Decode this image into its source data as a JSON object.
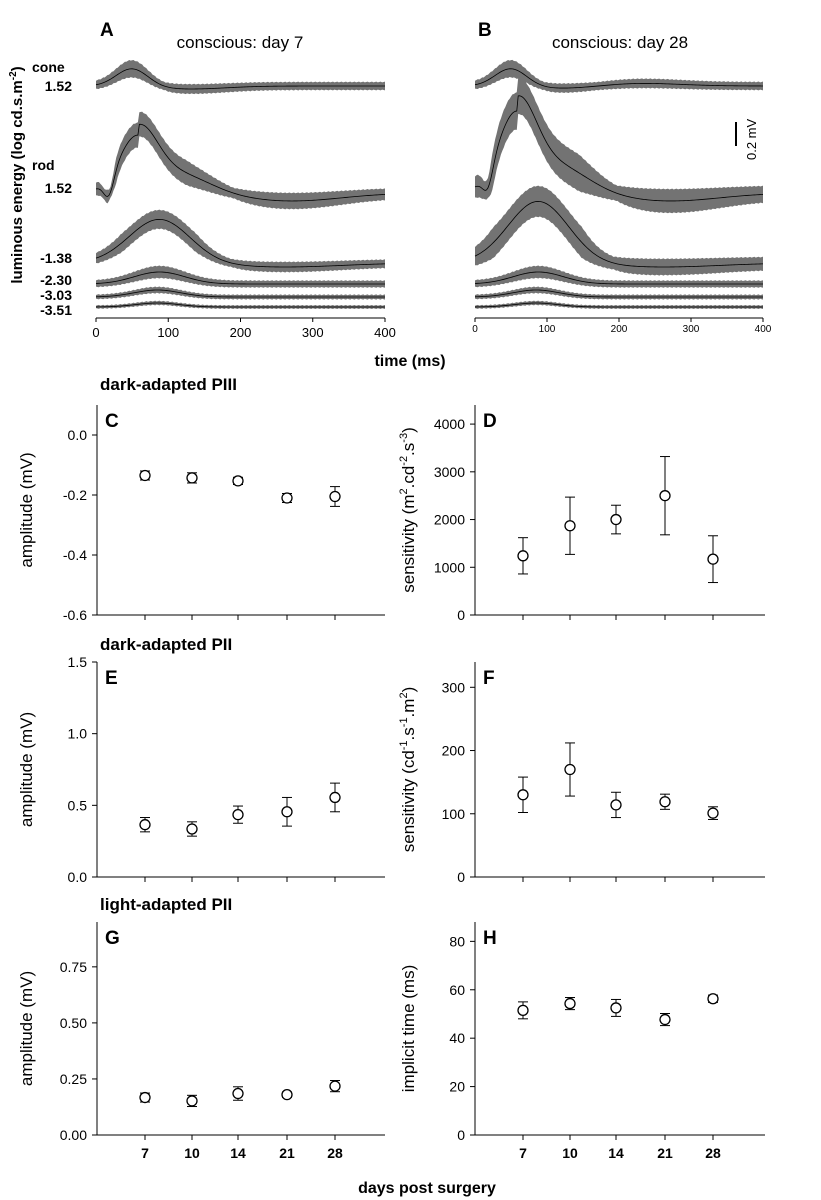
{
  "figure": {
    "global_xlabel": "days post surgery",
    "time_xlabel": "time (ms)",
    "traces_ylabel_main": "luminous energy (log cd.s.m",
    "traces_ylabel_sup": "-2",
    "traces_ylabel_end": ")"
  },
  "traces": {
    "panels": [
      {
        "letter": "A",
        "title": "conscious: day 7",
        "xticks": [
          0,
          100,
          200,
          300,
          400
        ]
      },
      {
        "letter": "B",
        "title": "conscious: day 28",
        "xticks": [
          0,
          100,
          200,
          300,
          400
        ]
      }
    ],
    "cone_label": "cone",
    "rod_label": "rod",
    "level_labels": [
      "1.52",
      "1.52",
      "-1.38",
      "-2.30",
      "-3.03",
      "-3.51"
    ],
    "scale_bar_label": "0.2 mV"
  },
  "sections": [
    "dark-adapted PIII",
    "dark-adapted PII",
    "light-adapted PII"
  ],
  "chart_data": [
    {
      "type": "scatter",
      "panel": "C",
      "section": "dark-adapted PIII",
      "ylabel": "amplitude (mV)",
      "ylim": [
        -0.6,
        0.1
      ],
      "yticks": [
        0.0,
        -0.2,
        -0.4,
        -0.6
      ],
      "ytick_labels": [
        "0.0",
        "-0.2",
        "-0.4",
        "-0.6"
      ],
      "x": [
        7,
        10,
        14,
        21,
        28
      ],
      "values": [
        -0.135,
        -0.143,
        -0.153,
        -0.21,
        -0.205
      ],
      "errors": [
        0.015,
        0.017,
        0.012,
        0.015,
        0.033
      ]
    },
    {
      "type": "scatter",
      "panel": "D",
      "section": "dark-adapted PIII",
      "ylabel_parts": [
        "sensitivity (m",
        "2",
        ".cd",
        "-2",
        ".s",
        "-3",
        ")"
      ],
      "ylim": [
        0,
        4400
      ],
      "yticks": [
        0,
        1000,
        2000,
        3000,
        4000
      ],
      "ytick_labels": [
        "0",
        "1000",
        "2000",
        "3000",
        "4000"
      ],
      "x": [
        7,
        10,
        14,
        21,
        28
      ],
      "values": [
        1240,
        1870,
        2000,
        2500,
        1170
      ],
      "errors": [
        380,
        600,
        300,
        820,
        490
      ]
    },
    {
      "type": "scatter",
      "panel": "E",
      "section": "dark-adapted PII",
      "ylabel": "amplitude (mV)",
      "ylim": [
        0,
        1.5
      ],
      "yticks": [
        0.0,
        0.5,
        1.0,
        1.5
      ],
      "ytick_labels": [
        "0.0",
        "0.5",
        "1.0",
        "1.5"
      ],
      "x": [
        7,
        10,
        14,
        21,
        28
      ],
      "values": [
        0.365,
        0.335,
        0.435,
        0.455,
        0.555
      ],
      "errors": [
        0.05,
        0.05,
        0.06,
        0.1,
        0.1
      ]
    },
    {
      "type": "scatter",
      "panel": "F",
      "section": "dark-adapted PII",
      "ylabel_parts": [
        "sensitivity (cd",
        "-1",
        ".s",
        "-1",
        ".m",
        "2",
        ")"
      ],
      "ylim": [
        0,
        340
      ],
      "yticks": [
        0,
        100,
        200,
        300
      ],
      "ytick_labels": [
        "0",
        "100",
        "200",
        "300"
      ],
      "x": [
        7,
        10,
        14,
        21,
        28
      ],
      "values": [
        130,
        170,
        114,
        119,
        101
      ],
      "errors": [
        28,
        42,
        20,
        12,
        10
      ]
    },
    {
      "type": "scatter",
      "panel": "G",
      "section": "light-adapted PII",
      "ylabel": "amplitude (mV)",
      "ylim": [
        0,
        0.95
      ],
      "yticks": [
        0.0,
        0.25,
        0.5,
        0.75
      ],
      "ytick_labels": [
        "0.00",
        "0.25",
        "0.50",
        "0.75"
      ],
      "x": [
        7,
        10,
        14,
        21,
        28
      ],
      "xtick_labels": [
        "7",
        "10",
        "14",
        "21",
        "28"
      ],
      "values": [
        0.167,
        0.152,
        0.185,
        0.18,
        0.218
      ],
      "errors": [
        0.02,
        0.025,
        0.03,
        0.012,
        0.025
      ]
    },
    {
      "type": "scatter",
      "panel": "H",
      "section": "light-adapted PII",
      "ylabel": "implicit time (ms)",
      "ylim": [
        0,
        88
      ],
      "yticks": [
        0,
        20,
        40,
        60,
        80
      ],
      "ytick_labels": [
        "0",
        "20",
        "40",
        "60",
        "80"
      ],
      "x": [
        7,
        10,
        14,
        21,
        28
      ],
      "xtick_labels": [
        "7",
        "10",
        "14",
        "21",
        "28"
      ],
      "values": [
        51.5,
        54.3,
        52.5,
        47.7,
        56.3
      ],
      "errors": [
        3.5,
        2.5,
        3.5,
        2.5,
        1.5
      ]
    }
  ]
}
